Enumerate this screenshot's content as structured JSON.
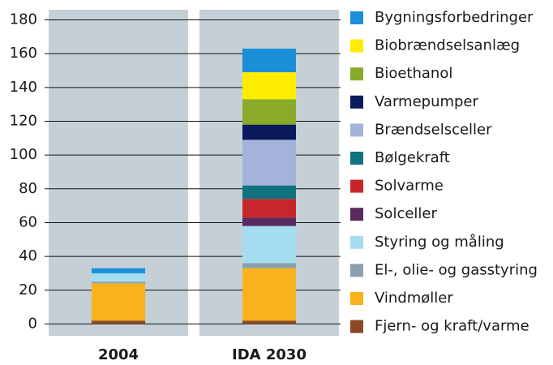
{
  "chart_data": {
    "type": "stacked_bar",
    "categories": [
      "2004",
      "IDA 2030"
    ],
    "ylim": [
      -7,
      186
    ],
    "yticks": [
      0,
      20,
      40,
      60,
      80,
      100,
      120,
      140,
      160,
      180
    ],
    "grid": true,
    "series": [
      {
        "name": "Fjern- og kraft/varme",
        "color": "#8b4a24",
        "values": [
          2,
          2
        ]
      },
      {
        "name": "Vindmøller",
        "color": "#f9b21b",
        "values": [
          22,
          31
        ]
      },
      {
        "name": "El-, olie- og gasstyring",
        "color": "#8aa0ac",
        "values": [
          1,
          3
        ]
      },
      {
        "name": "Styring og måling",
        "color": "#a6dcef",
        "values": [
          5,
          22
        ]
      },
      {
        "name": "Solceller",
        "color": "#5a2a5e",
        "values": [
          0,
          5
        ]
      },
      {
        "name": "Solvarme",
        "color": "#c8262a",
        "values": [
          0,
          11
        ]
      },
      {
        "name": "Bølgekraft",
        "color": "#0f7380",
        "values": [
          0,
          8
        ]
      },
      {
        "name": "Brændselsceller",
        "color": "#a3b3d9",
        "values": [
          0,
          27
        ]
      },
      {
        "name": "Varmepumper",
        "color": "#0a1a5c",
        "values": [
          0,
          9
        ]
      },
      {
        "name": "Bioethanol",
        "color": "#8aaa2a",
        "values": [
          0,
          15
        ]
      },
      {
        "name": "Biobrændselsanlæg",
        "color": "#ffec00",
        "values": [
          0,
          16
        ]
      },
      {
        "name": "Bygningsforbedringer",
        "color": "#1a8fd8",
        "values": [
          3,
          14
        ]
      }
    ]
  }
}
